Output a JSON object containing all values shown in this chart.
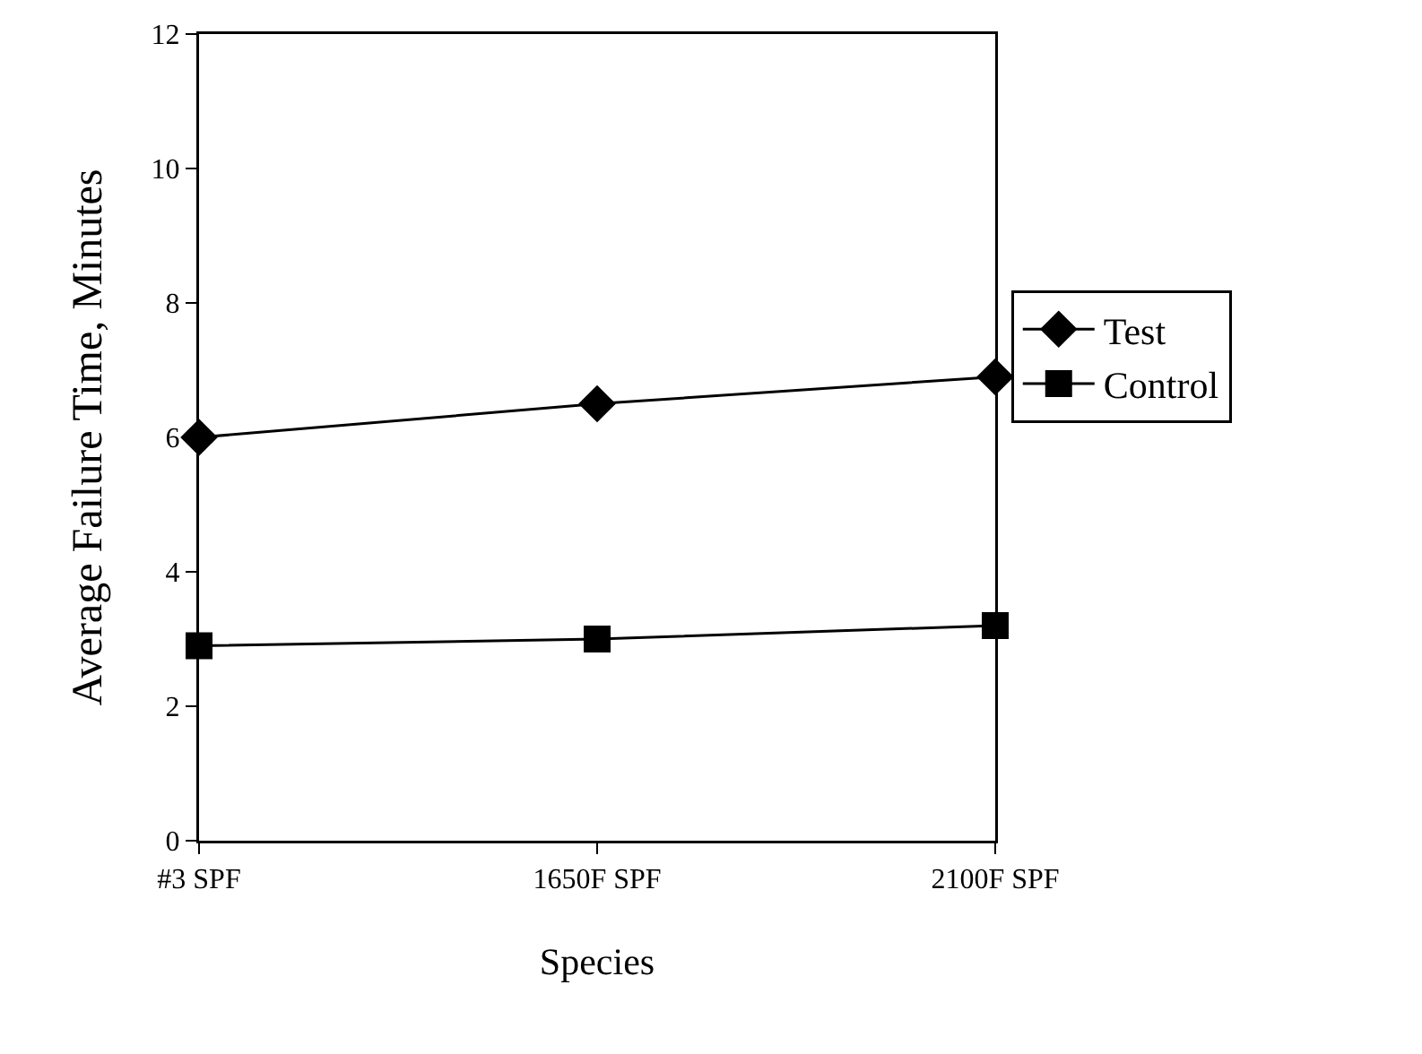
{
  "chart_data": {
    "type": "line",
    "xlabel": "Species",
    "ylabel": "Average Failure Time, Minutes",
    "categories": [
      "#3 SPF",
      "1650F SPF",
      "2100F SPF"
    ],
    "series": [
      {
        "name": "Test",
        "color": "#000000",
        "marker": "diamond",
        "values": [
          6.0,
          6.5,
          6.9
        ]
      },
      {
        "name": "Control",
        "color": "#000000",
        "marker": "square",
        "values": [
          2.9,
          3.0,
          3.2
        ]
      }
    ],
    "ylim": [
      0,
      12
    ],
    "yticks": [
      0,
      2,
      4,
      6,
      8,
      10,
      12
    ],
    "grid": false,
    "legend": "right",
    "line_style": "solid"
  }
}
